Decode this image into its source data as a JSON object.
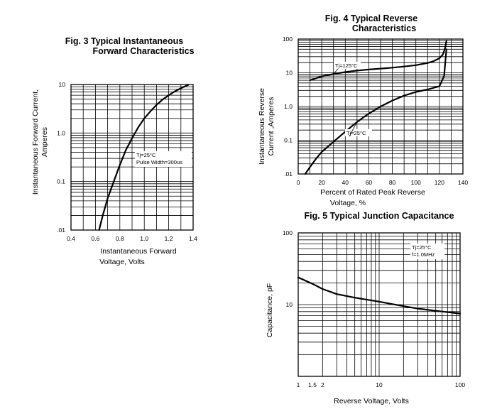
{
  "chart_data": [
    {
      "type": "line",
      "title": "Fig. 3 Typical Instantaneous\nForward Characteristics",
      "xlabel": "Instantaneous Forward\nVoltage, Volts",
      "ylabel": "Instantaneous Forward Current,\nAmperes",
      "xlim": [
        0.4,
        1.4
      ],
      "ylim": [
        0.01,
        10
      ],
      "yscale": "log",
      "grid": true,
      "x_ticks": [
        "0.4",
        "0.6",
        "0.8",
        "1.0",
        "1.2",
        "1.4"
      ],
      "y_ticks": [
        ".01",
        "0.1",
        "1.0",
        "10"
      ],
      "annotations": [
        "Tj=25°C",
        "Pulse Width=300us"
      ],
      "series": [
        {
          "x": [
            0.63,
            0.66,
            0.7,
            0.75,
            0.8,
            0.85,
            0.9,
            0.95,
            1.0,
            1.05,
            1.1,
            1.15,
            1.2,
            1.25,
            1.3,
            1.36
          ],
          "y": [
            0.01,
            0.02,
            0.045,
            0.1,
            0.22,
            0.45,
            0.78,
            1.3,
            2.0,
            2.8,
            3.8,
            4.9,
            6.0,
            7.2,
            8.4,
            9.8
          ]
        }
      ]
    },
    {
      "type": "line",
      "title": "Fig. 4 Typical Reverse\nCharacteristics",
      "xlabel": "Percent of Rated Peak Reverse\nVoltage, %",
      "ylabel": "Instantaneous Reverse\nCurrent ,Amperes",
      "xlim": [
        0,
        140
      ],
      "ylim": [
        0.01,
        100
      ],
      "yscale": "log",
      "grid": true,
      "x_ticks": [
        "0",
        "20",
        "40",
        "60",
        "80",
        "100",
        "120",
        "140"
      ],
      "y_ticks": [
        ".01",
        "0.1",
        "1.0",
        "10",
        "100"
      ],
      "series": [
        {
          "name": "Tj=125°C",
          "x": [
            10,
            20,
            30,
            40,
            50,
            60,
            70,
            80,
            90,
            100,
            110,
            115,
            120,
            123,
            125,
            126
          ],
          "y": [
            6,
            7.8,
            9.2,
            10.5,
            11.6,
            12.5,
            13.3,
            14.2,
            15.3,
            16.8,
            19.5,
            22,
            27,
            35,
            55,
            90
          ]
        },
        {
          "name": "Tj=25°C",
          "x": [
            6,
            10,
            15,
            20,
            30,
            40,
            50,
            60,
            70,
            80,
            90,
            100,
            110,
            120,
            124,
            125,
            126
          ],
          "y": [
            0.01,
            0.016,
            0.028,
            0.045,
            0.09,
            0.18,
            0.35,
            0.62,
            1.0,
            1.5,
            2.1,
            2.7,
            3.2,
            4.0,
            8,
            20,
            50
          ]
        }
      ]
    },
    {
      "type": "line",
      "title": "Fig. 5 Typical Junction Capacitance",
      "xlabel": "Reverse Voltage, Volts",
      "ylabel": "Capacitance, pF",
      "xlim": [
        1,
        100
      ],
      "ylim": [
        1,
        100
      ],
      "xscale": "log",
      "yscale": "log",
      "grid": true,
      "x_ticks": [
        "1",
        "1.5",
        "2",
        "10",
        "100"
      ],
      "y_ticks": [
        "10",
        "100"
      ],
      "annotations": [
        "Tj=25°C",
        "f=1.0MHz"
      ],
      "series": [
        {
          "x": [
            1,
            1.5,
            2,
            3,
            5,
            10,
            20,
            30,
            50,
            100
          ],
          "y": [
            24,
            19.5,
            16.5,
            14,
            12.5,
            11,
            9.5,
            8.8,
            8.2,
            7.5
          ]
        }
      ]
    }
  ]
}
